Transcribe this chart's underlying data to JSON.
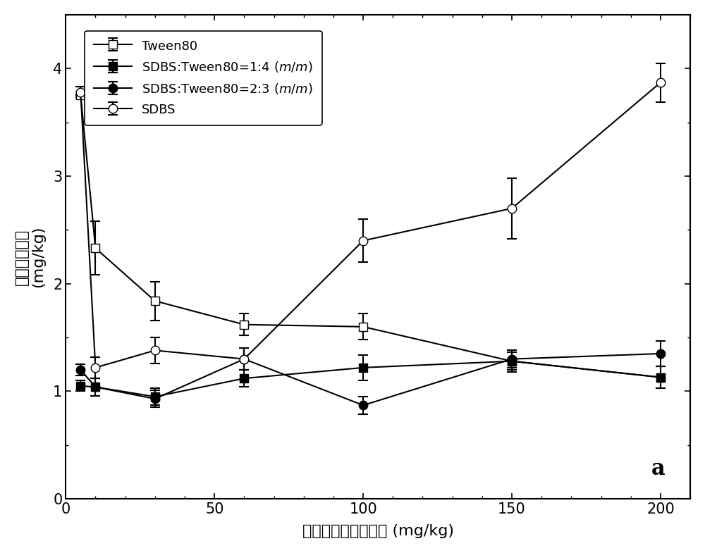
{
  "x": [
    5,
    10,
    30,
    60,
    100,
    150,
    200
  ],
  "series_order": [
    "Tween80",
    "SDBS_Tween80_1_4",
    "SDBS_Tween80_2_3",
    "SDBS"
  ],
  "series": {
    "Tween80": {
      "y": [
        3.75,
        2.33,
        1.84,
        1.62,
        1.6,
        1.28,
        1.13
      ],
      "yerr": [
        0.0,
        0.25,
        0.18,
        0.1,
        0.12,
        0.08,
        0.1
      ],
      "marker": "s",
      "fillstyle": "none",
      "label": "Tween80"
    },
    "SDBS_Tween80_1_4": {
      "y": [
        1.05,
        1.04,
        0.95,
        1.12,
        1.22,
        1.28,
        1.13
      ],
      "yerr": [
        0.05,
        0.08,
        0.08,
        0.08,
        0.12,
        0.1,
        0.1
      ],
      "marker": "s",
      "fillstyle": "full",
      "label": "SDBS:Tween80=1:4 ($m/m$)"
    },
    "SDBS_Tween80_2_3": {
      "y": [
        1.2,
        1.04,
        0.93,
        1.3,
        0.87,
        1.3,
        1.35
      ],
      "yerr": [
        0.05,
        0.08,
        0.08,
        0.1,
        0.08,
        0.08,
        0.12
      ],
      "marker": "o",
      "fillstyle": "full",
      "label": "SDBS:Tween80=2:3 ($m/m$)"
    },
    "SDBS": {
      "y": [
        3.78,
        1.22,
        1.38,
        1.3,
        2.4,
        2.7,
        3.87
      ],
      "yerr": [
        0.05,
        0.1,
        0.12,
        0.1,
        0.2,
        0.28,
        0.18
      ],
      "marker": "o",
      "fillstyle": "none",
      "label": "SDBS"
    }
  },
  "xlabel": "投加表面活性剂剂量 (mg/kg)",
  "ylabel_chinese": "土壤菲残留量",
  "ylabel_unit": "(mg/kg)",
  "xlim": [
    0,
    210
  ],
  "ylim": [
    0,
    4.5
  ],
  "yticks": [
    0,
    1,
    2,
    3,
    4
  ],
  "xticks": [
    0,
    50,
    100,
    150,
    200
  ],
  "annotation": "a",
  "figsize": [
    10.0,
    7.85
  ],
  "dpi": 100
}
